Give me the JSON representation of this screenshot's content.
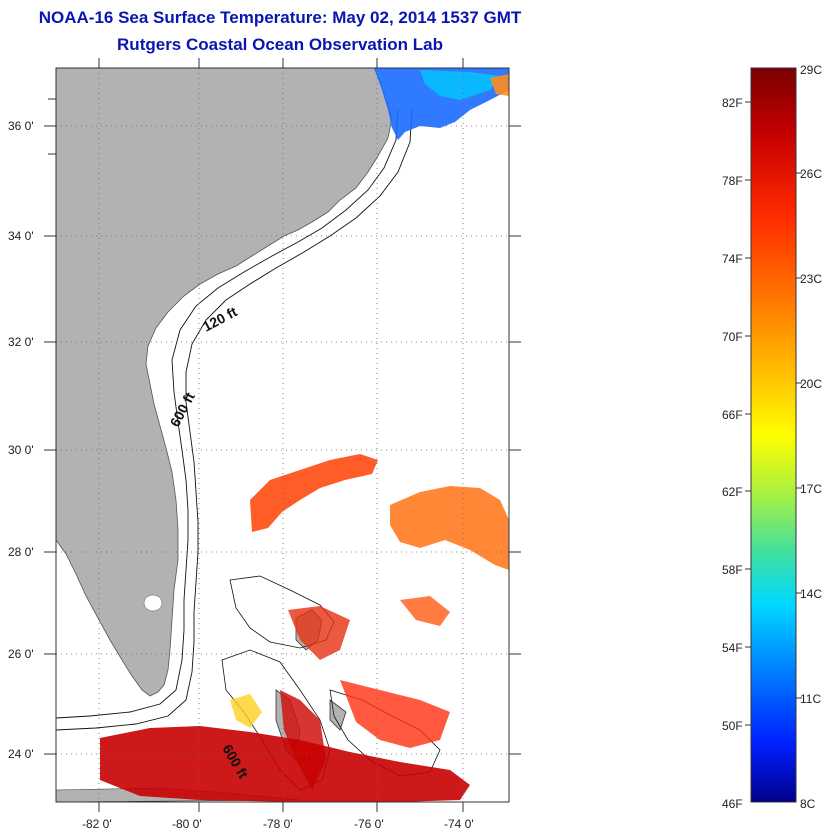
{
  "header": {
    "title": "NOAA-16 Sea Surface Temperature:  May 02, 2014 1537 GMT",
    "subtitle": "Rutgers Coastal Ocean Observation Lab"
  },
  "map": {
    "lon_range": [
      -83,
      -73
    ],
    "lat_range": [
      23,
      37
    ],
    "x_ticks": [
      "-82 0'",
      "-80 0'",
      "-78 0'",
      "-76 0'",
      "-74 0'"
    ],
    "y_ticks": [
      "36 0'",
      "34 0'",
      "32 0'",
      "30 0'",
      "28 0'",
      "26 0'",
      "24 0'"
    ],
    "contours": [
      "120 ft",
      "600 ft",
      "600 ft"
    ],
    "land_color": "#b2b2b2"
  },
  "colorbar": {
    "fahrenheit_labels": [
      "82F",
      "78F",
      "74F",
      "70F",
      "66F",
      "62F",
      "58F",
      "54F",
      "50F",
      "46F"
    ],
    "celsius_labels": [
      "29C",
      "26C",
      "23C",
      "20C",
      "17C",
      "14C",
      "11C",
      "8C"
    ],
    "colors": [
      "#7a0000",
      "#c60000",
      "#ff2a00",
      "#ff7a00",
      "#ffc200",
      "#ffff00",
      "#a8f040",
      "#40e0a0",
      "#00d8ff",
      "#0080ff",
      "#0020ff",
      "#00008a"
    ]
  }
}
